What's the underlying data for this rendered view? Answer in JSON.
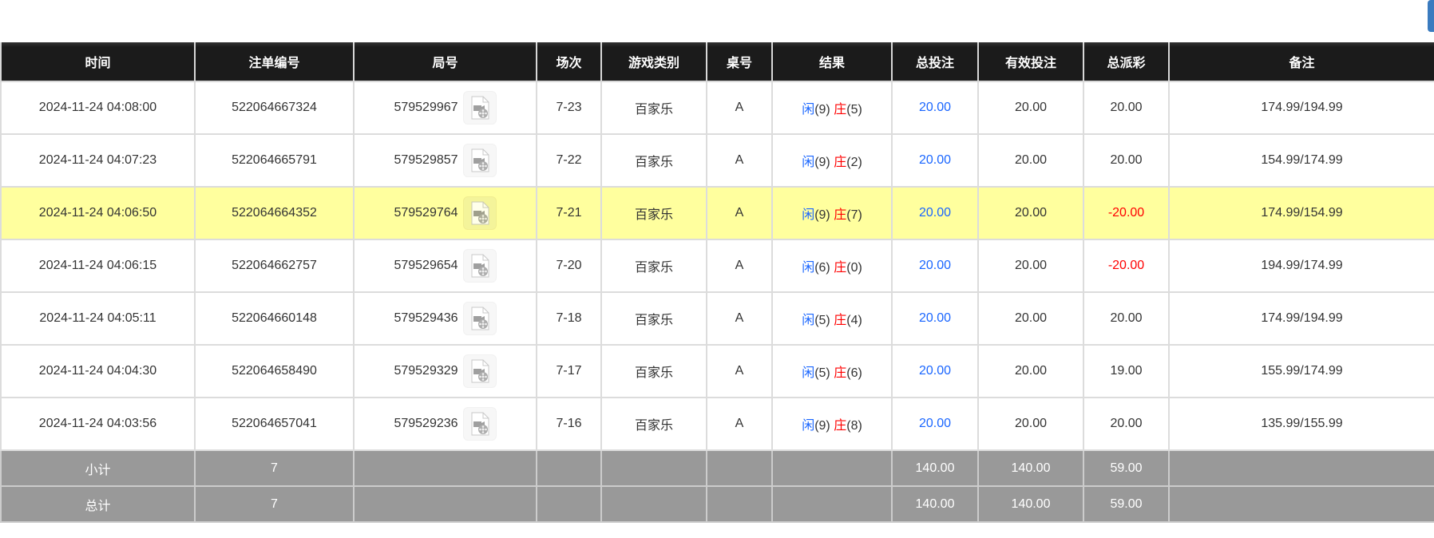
{
  "headers": [
    "时间",
    "注单编号",
    "局号",
    "场次",
    "游戏类别",
    "桌号",
    "结果",
    "总投注",
    "有效投注",
    "总派彩",
    "备注"
  ],
  "rows": [
    {
      "time": "2024-11-24 04:08:00",
      "bet_id": "522064667324",
      "round": "579529967",
      "session": "7-23",
      "game": "百家乐",
      "table": "A",
      "player": "闲",
      "player_pts": "(9)",
      "banker": "庄",
      "banker_pts": "(5)",
      "total_bet": "20.00",
      "valid_bet": "20.00",
      "payout": "20.00",
      "payout_negative": false,
      "note": "174.99/194.99",
      "highlight": false
    },
    {
      "time": "2024-11-24 04:07:23",
      "bet_id": "522064665791",
      "round": "579529857",
      "session": "7-22",
      "game": "百家乐",
      "table": "A",
      "player": "闲",
      "player_pts": "(9)",
      "banker": "庄",
      "banker_pts": "(2)",
      "total_bet": "20.00",
      "valid_bet": "20.00",
      "payout": "20.00",
      "payout_negative": false,
      "note": "154.99/174.99",
      "highlight": false
    },
    {
      "time": "2024-11-24 04:06:50",
      "bet_id": "522064664352",
      "round": "579529764",
      "session": "7-21",
      "game": "百家乐",
      "table": "A",
      "player": "闲",
      "player_pts": "(9)",
      "banker": "庄",
      "banker_pts": "(7)",
      "total_bet": "20.00",
      "valid_bet": "20.00",
      "payout": "-20.00",
      "payout_negative": true,
      "note": "174.99/154.99",
      "highlight": true
    },
    {
      "time": "2024-11-24 04:06:15",
      "bet_id": "522064662757",
      "round": "579529654",
      "session": "7-20",
      "game": "百家乐",
      "table": "A",
      "player": "闲",
      "player_pts": "(6)",
      "banker": "庄",
      "banker_pts": "(0)",
      "total_bet": "20.00",
      "valid_bet": "20.00",
      "payout": "-20.00",
      "payout_negative": true,
      "note": "194.99/174.99",
      "highlight": false
    },
    {
      "time": "2024-11-24 04:05:11",
      "bet_id": "522064660148",
      "round": "579529436",
      "session": "7-18",
      "game": "百家乐",
      "table": "A",
      "player": "闲",
      "player_pts": "(5)",
      "banker": "庄",
      "banker_pts": "(4)",
      "total_bet": "20.00",
      "valid_bet": "20.00",
      "payout": "20.00",
      "payout_negative": false,
      "note": "174.99/194.99",
      "highlight": false
    },
    {
      "time": "2024-11-24 04:04:30",
      "bet_id": "522064658490",
      "round": "579529329",
      "session": "7-17",
      "game": "百家乐",
      "table": "A",
      "player": "闲",
      "player_pts": "(5)",
      "banker": "庄",
      "banker_pts": "(6)",
      "total_bet": "20.00",
      "valid_bet": "20.00",
      "payout": "19.00",
      "payout_negative": false,
      "note": "155.99/174.99",
      "highlight": false
    },
    {
      "time": "2024-11-24 04:03:56",
      "bet_id": "522064657041",
      "round": "579529236",
      "session": "7-16",
      "game": "百家乐",
      "table": "A",
      "player": "闲",
      "player_pts": "(9)",
      "banker": "庄",
      "banker_pts": "(8)",
      "total_bet": "20.00",
      "valid_bet": "20.00",
      "payout": "20.00",
      "payout_negative": false,
      "note": "135.99/155.99",
      "highlight": false
    }
  ],
  "summary": [
    {
      "label": "小计",
      "count": "7",
      "total_bet": "140.00",
      "valid_bet": "140.00",
      "payout": "59.00"
    },
    {
      "label": "总计",
      "count": "7",
      "total_bet": "140.00",
      "valid_bet": "140.00",
      "payout": "59.00"
    }
  ],
  "icons": {
    "replay": "video-file-icon"
  },
  "colors": {
    "player": "#1a66ff",
    "banker": "#ff0000",
    "negative": "#ff0000",
    "highlight": "#ffff9e",
    "summary_bg": "#999999",
    "header_bg": "#1b1b1b"
  }
}
